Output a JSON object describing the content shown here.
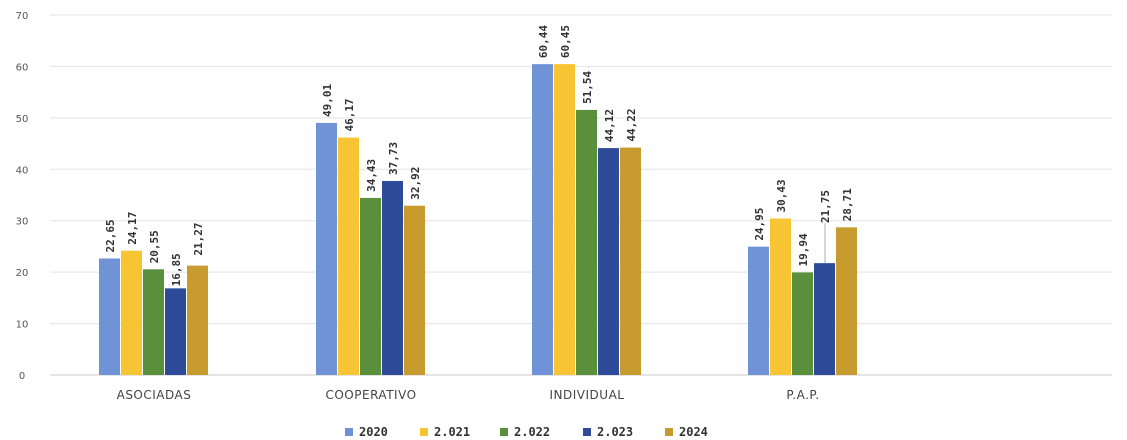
{
  "chart_data": {
    "type": "bar",
    "title": "",
    "categories": [
      "ASOCIADAS",
      "COOPERATIVO",
      "INDIVIDUAL",
      "P.A.P."
    ],
    "ylim": [
      0,
      70
    ],
    "yticks": [
      "0",
      "10",
      "20",
      "30",
      "40",
      "50",
      "60",
      "70"
    ],
    "grid": true,
    "legend_position": "bottom",
    "series": [
      {
        "name": "2020",
        "color": "#6f93d6",
        "values": [
          22.65,
          49.01,
          60.44,
          24.95
        ],
        "labels": [
          "22,65",
          "49,01",
          "60,44",
          "24,95"
        ]
      },
      {
        "name": "2.021",
        "color": "#f7c533",
        "values": [
          24.17,
          46.17,
          60.45,
          30.43
        ],
        "labels": [
          "24,17",
          "46,17",
          "60,45",
          "30,43"
        ]
      },
      {
        "name": "2.022",
        "color": "#5a8f3c",
        "values": [
          20.55,
          34.43,
          51.54,
          19.94
        ],
        "labels": [
          "20,55",
          "34,43",
          "51,54",
          "19,94"
        ]
      },
      {
        "name": "2.023",
        "color": "#2e4b9a",
        "values": [
          16.85,
          37.73,
          44.12,
          21.75
        ],
        "labels": [
          "16,85",
          "37,73",
          "44,12",
          "21,75"
        ]
      },
      {
        "name": "2024",
        "color": "#c89b2e",
        "values": [
          21.27,
          32.92,
          44.22,
          28.71
        ],
        "labels": [
          "21,27",
          "32,92",
          "44,22",
          "28,71"
        ]
      }
    ]
  }
}
